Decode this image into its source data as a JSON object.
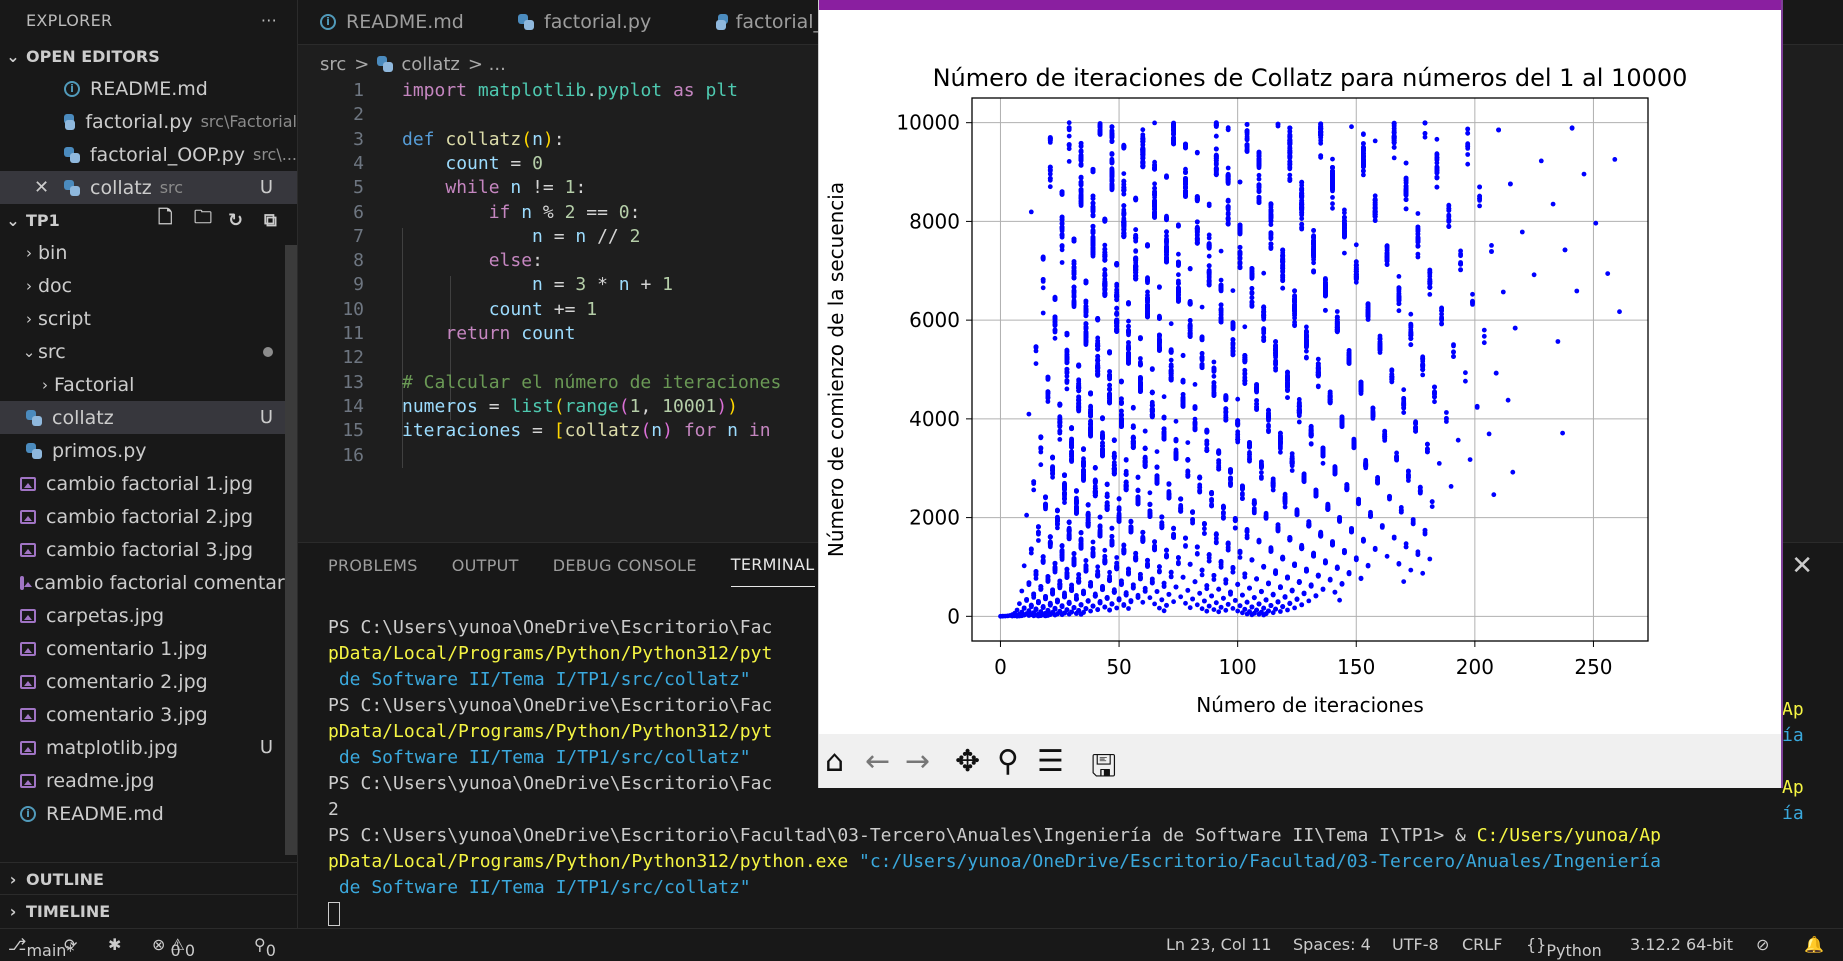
{
  "explorer": {
    "title": "EXPLORER",
    "more": "···",
    "open_editors_label": "OPEN EDITORS",
    "open_editors": [
      {
        "name": "README.md",
        "path": "",
        "badge": "",
        "icon": "info"
      },
      {
        "name": "factorial.py",
        "path": "src\\Factorial",
        "badge": "",
        "icon": "py"
      },
      {
        "name": "factorial_OOP.py",
        "path": "src\\...",
        "badge": "",
        "icon": "py"
      },
      {
        "name": "collatz",
        "path": "src",
        "badge": "U",
        "icon": "py"
      }
    ],
    "close_glyph": "✕",
    "project_label": "TP1",
    "tree": [
      {
        "name": "bin",
        "type": "folder"
      },
      {
        "name": "doc",
        "type": "folder"
      },
      {
        "name": "script",
        "type": "folder"
      },
      {
        "name": "src",
        "type": "folder-open"
      },
      {
        "name": "Factorial",
        "type": "subfolder"
      },
      {
        "name": "collatz",
        "type": "py",
        "badge": "U"
      },
      {
        "name": "primos.py",
        "type": "py"
      },
      {
        "name": "cambio factorial 1.jpg",
        "type": "img"
      },
      {
        "name": "cambio factorial 2.jpg",
        "type": "img"
      },
      {
        "name": "cambio factorial 3.jpg",
        "type": "img"
      },
      {
        "name": "cambio factorial comentari...",
        "type": "img"
      },
      {
        "name": "carpetas.jpg",
        "type": "img"
      },
      {
        "name": "comentario 1.jpg",
        "type": "img"
      },
      {
        "name": "comentario 2.jpg",
        "type": "img"
      },
      {
        "name": "comentario 3.jpg",
        "type": "img"
      },
      {
        "name": "matplotlib.jpg",
        "type": "img",
        "badge": "U"
      },
      {
        "name": "readme.jpg",
        "type": "img"
      },
      {
        "name": "README.md",
        "type": "info"
      }
    ],
    "outline_label": "OUTLINE",
    "timeline_label": "TIMELINE"
  },
  "tabs": [
    {
      "label": "README.md",
      "icon": "info"
    },
    {
      "label": "factorial.py",
      "icon": "py"
    },
    {
      "label": "factorial_O",
      "icon": "py"
    }
  ],
  "breadcrumb": {
    "folder": "src",
    "sep": ">",
    "file": "collatz",
    "rest": "> ..."
  },
  "code_lines": [
    {
      "n": "1",
      "html": "<span class=\"kw\">import</span> <span class=\"ty\">matplotlib</span>.<span class=\"ty\">pyplot</span> <span class=\"kw\">as</span> <span class=\"ty\">plt</span>"
    },
    {
      "n": "2",
      "html": ""
    },
    {
      "n": "3",
      "html": "<span class=\"kw2\">def</span> <span class=\"fn\">collatz</span><span class=\"br\">(</span><span class=\"var\">n</span><span class=\"br\">)</span>:"
    },
    {
      "n": "4",
      "html": "    <span class=\"var\">count</span> = <span class=\"num\">0</span>"
    },
    {
      "n": "5",
      "html": "    <span class=\"kw\">while</span> <span class=\"var\">n</span> != <span class=\"num\">1</span>:"
    },
    {
      "n": "6",
      "html": "        <span class=\"kw\">if</span> <span class=\"var\">n</span> % <span class=\"num\">2</span> == <span class=\"num\">0</span>:"
    },
    {
      "n": "7",
      "html": "            <span class=\"var\">n</span> = <span class=\"var\">n</span> // <span class=\"num\">2</span>"
    },
    {
      "n": "8",
      "html": "        <span class=\"kw\">else</span>:"
    },
    {
      "n": "9",
      "html": "            <span class=\"var\">n</span> = <span class=\"num\">3</span> * <span class=\"var\">n</span> + <span class=\"num\">1</span>"
    },
    {
      "n": "10",
      "html": "        <span class=\"var\">count</span> += <span class=\"num\">1</span>"
    },
    {
      "n": "11",
      "html": "    <span class=\"kw\">return</span> <span class=\"var\">count</span>"
    },
    {
      "n": "12",
      "html": ""
    },
    {
      "n": "13",
      "html": "<span class=\"com\"># Calcular el número de iteraciones</span>"
    },
    {
      "n": "14",
      "html": "<span class=\"var\">numeros</span> = <span class=\"ty\">list</span><span class=\"br\">(</span><span class=\"ty\">range</span><span class=\"br2\">(</span><span class=\"num\">1</span>, <span class=\"num\">10001</span><span class=\"br2\">)</span><span class=\"br\">)</span>"
    },
    {
      "n": "15",
      "html": "<span class=\"var\">iteraciones</span> = <span class=\"br\">[</span><span class=\"fn\">collatz</span><span class=\"br2\">(</span><span class=\"var\">n</span><span class=\"br2\">)</span> <span class=\"kw\">for</span> <span class=\"var\">n</span> <span class=\"kw\">in</span>"
    },
    {
      "n": "16",
      "html": ""
    }
  ],
  "panel": {
    "tabs": [
      "PROBLEMS",
      "OUTPUT",
      "DEBUG CONSOLE",
      "TERMINAL"
    ],
    "active": 3,
    "close_glyph": "✕",
    "terminal_lines": [
      {
        "cls": "",
        "text": "PS C:\\Users\\yunoa\\OneDrive\\Escritorio\\Fac"
      },
      {
        "cls": "ty2",
        "text": "pData/Local/Programs/Python/Python312/pyt"
      },
      {
        "cls": "tc",
        "text": " de Software II/Tema I/TP1/src/collatz\""
      },
      {
        "cls": "",
        "text": "PS C:\\Users\\yunoa\\OneDrive\\Escritorio\\Fac"
      },
      {
        "cls": "ty2",
        "text": "pData/Local/Programs/Python/Python312/pyt"
      },
      {
        "cls": "tc",
        "text": " de Software II/Tema I/TP1/src/collatz\""
      },
      {
        "cls": "",
        "text": "PS C:\\Users\\yunoa\\OneDrive\\Escritorio\\Fac"
      },
      {
        "cls": "",
        "text": "2"
      }
    ],
    "last_prompt": "PS C:\\Users\\yunoa\\OneDrive\\Escritorio\\Facultad\\03-Tercero\\Anuales\\Ingeniería de Software II\\Tema I\\TP1> & ",
    "last_exe_a": "C:/Users/yunoa/Ap",
    "last_exe_b": "pData/Local/Programs/Python/Python312/python.exe",
    "last_arg_a": " \"c:/Users/yunoa/OneDrive/Escritorio/Facultad/03-Tercero/Anuales/Ingeniería",
    "last_arg_b": " de Software II/Tema I/TP1/src/collatz\"",
    "right_fragments": [
      {
        "cls": "ty2",
        "text": "Ap"
      },
      {
        "cls": "tc",
        "text": "ía"
      },
      {
        "cls": "ty2",
        "text": "Ap"
      },
      {
        "cls": "tc",
        "text": "ía"
      }
    ]
  },
  "status": {
    "branch": "main*",
    "errors": "0",
    "warnings": "0",
    "ports": "0",
    "position": "Ln 23, Col 11",
    "spaces": "Spaces: 4",
    "encoding": "UTF-8",
    "eol": "CRLF",
    "language": "Python",
    "interpreter": "3.12.2 64-bit"
  },
  "chart_data": {
    "type": "scatter",
    "title": "Número de iteraciones de Collatz para números del 1 al 10000",
    "xlabel": "Número de iteraciones",
    "ylabel": "Número de comienzo de la secuencia",
    "xlim": [
      -12,
      273
    ],
    "ylim": [
      -500,
      10500
    ],
    "xticks": [
      0,
      50,
      100,
      150,
      200,
      250
    ],
    "yticks": [
      0,
      2000,
      4000,
      6000,
      8000,
      10000
    ],
    "grid": true,
    "color": "#0000ff",
    "generation": "y = 1..10000, x = collatz step count of y"
  }
}
